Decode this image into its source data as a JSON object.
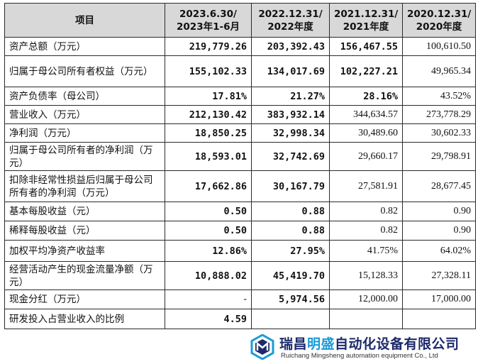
{
  "table": {
    "headers": [
      [
        "项目"
      ],
      [
        "2023.6.30/",
        "2023年1-6月"
      ],
      [
        "2022.12.31/",
        "2022年度"
      ],
      [
        "2021.12.31/",
        "2021年度"
      ],
      [
        "2020.12.31/",
        "2020年度"
      ]
    ],
    "rows": [
      {
        "label": "资产总额（万元）",
        "values": [
          "219,779.26",
          "203,392.43",
          "156,467.55",
          "100,610.50"
        ]
      },
      {
        "label": "归属于母公司所有者权益（万元）",
        "values": [
          "155,102.33",
          "134,017.69",
          "102,227.21",
          "49,965.34"
        ]
      },
      {
        "label": "资产负债率（母公司）",
        "values": [
          "17.81%",
          "21.27%",
          "28.16%",
          "43.52%"
        ]
      },
      {
        "label": "营业收入（万元）",
        "values": [
          "212,130.42",
          "383,932.14",
          "344,634.57",
          "273,778.29"
        ]
      },
      {
        "label": "净利润（万元）",
        "values": [
          "18,850.25",
          "32,998.34",
          "30,489.60",
          "30,602.33"
        ]
      },
      {
        "label": "归属于母公司所有者的净利润（万元）",
        "values": [
          "18,593.01",
          "32,742.69",
          "29,660.17",
          "29,798.91"
        ]
      },
      {
        "label": "扣除非经常性损益后归属于母公司所有者的净利润（万元）",
        "values": [
          "17,662.86",
          "30,167.79",
          "27,581.91",
          "28,677.45"
        ]
      },
      {
        "label": "基本每股收益（元）",
        "values": [
          "0.50",
          "0.88",
          "0.82",
          "0.90"
        ]
      },
      {
        "label": "稀释每股收益（元）",
        "values": [
          "0.50",
          "0.88",
          "0.82",
          "0.90"
        ]
      },
      {
        "label": "加权平均净资产收益率",
        "values": [
          "12.86%",
          "27.95%",
          "41.75%",
          "64.02%"
        ]
      },
      {
        "label": "经营活动产生的现金流量净额（万元）",
        "values": [
          "10,888.02",
          "45,419.70",
          "15,128.33",
          "27,328.11"
        ]
      },
      {
        "label": "现金分红（万元）",
        "values": [
          "-",
          "5,974.56",
          "12,000.00",
          "17,000.00"
        ]
      },
      {
        "label": "研发投入占营业收入的比例",
        "values": [
          "4.59",
          "",
          "",
          ""
        ]
      }
    ]
  },
  "watermark": {
    "title_prefix": "瑞昌",
    "title_accent": "明盛",
    "title_suffix": "自动化设备有限公司",
    "subtitle": "Ruichang Mingsheng automation equipment Co., Ltd"
  },
  "colors": {
    "header_bg": "#d8d8d8",
    "brand_blue": "#1d2a6b",
    "brand_accent": "#1a9bd7"
  }
}
